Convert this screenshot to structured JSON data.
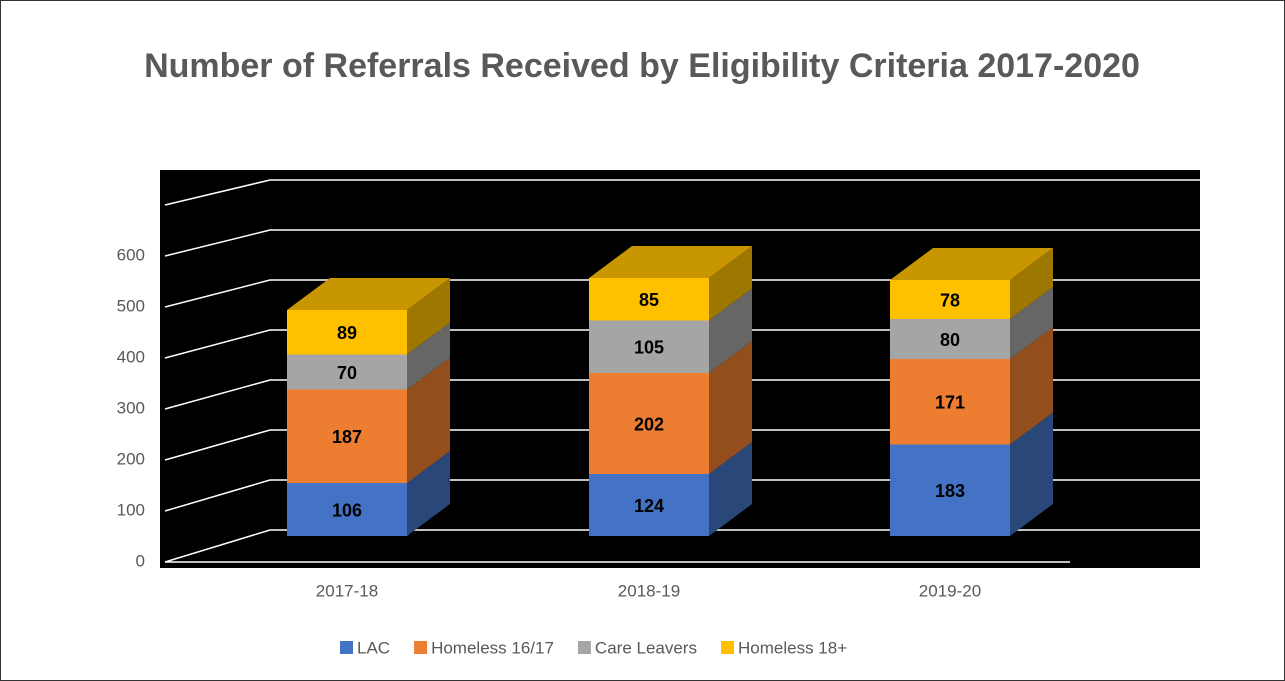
{
  "chart_data": {
    "type": "bar3d_stacked",
    "title": "Number of Referrals Received by Eligibility Criteria 2017-2020",
    "categories": [
      "2017-18",
      "2018-19",
      "2019-20"
    ],
    "series": [
      {
        "name": "LAC",
        "color": "#4472c4",
        "values": [
          106,
          124,
          183
        ]
      },
      {
        "name": "Homeless 16/17",
        "color": "#ed7d31",
        "values": [
          187,
          202,
          171
        ]
      },
      {
        "name": "Care Leavers",
        "color": "#a5a5a5",
        "values": [
          70,
          105,
          80
        ]
      },
      {
        "name": "Homeless 18+",
        "color": "#ffc000",
        "values": [
          89,
          85,
          78
        ]
      }
    ],
    "ylim": [
      0,
      700
    ],
    "yticks": [
      0,
      100,
      200,
      300,
      400,
      500,
      600
    ],
    "grid": true,
    "legend": "bottom"
  }
}
